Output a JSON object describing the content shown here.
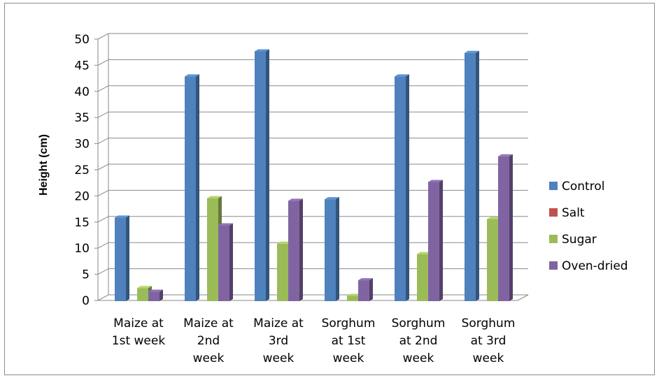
{
  "chart_data": {
    "type": "bar",
    "title": "",
    "xlabel": "",
    "ylabel": "Height (cm)",
    "ylim": [
      0,
      50
    ],
    "yticks": [
      0,
      5,
      10,
      15,
      20,
      25,
      30,
      35,
      40,
      45,
      50
    ],
    "grid": true,
    "legend_position": "right",
    "categories": [
      [
        "Maize at",
        "1st week"
      ],
      [
        "Maize at",
        "2nd",
        "week"
      ],
      [
        "Maize at",
        "3rd",
        "week"
      ],
      [
        "Sorghum",
        "at 1st",
        "week"
      ],
      [
        "Sorghum",
        "at 2nd",
        "week"
      ],
      [
        "Sorghum",
        "at 3rd",
        "week"
      ]
    ],
    "series": [
      {
        "name": "Control",
        "color": "#4f81bd",
        "values": [
          16,
          43,
          47.8,
          19.5,
          43,
          47.5
        ]
      },
      {
        "name": "Salt",
        "color": "#c0504d",
        "values": [
          0,
          0,
          0,
          0,
          0,
          0
        ]
      },
      {
        "name": "Sugar",
        "color": "#9bbb59",
        "values": [
          2.5,
          19.7,
          11,
          1,
          9,
          15.7
        ]
      },
      {
        "name": "Oven-dried",
        "color": "#8064a2",
        "values": [
          1.8,
          14.5,
          19.2,
          4,
          22.8,
          27.7
        ]
      }
    ]
  }
}
